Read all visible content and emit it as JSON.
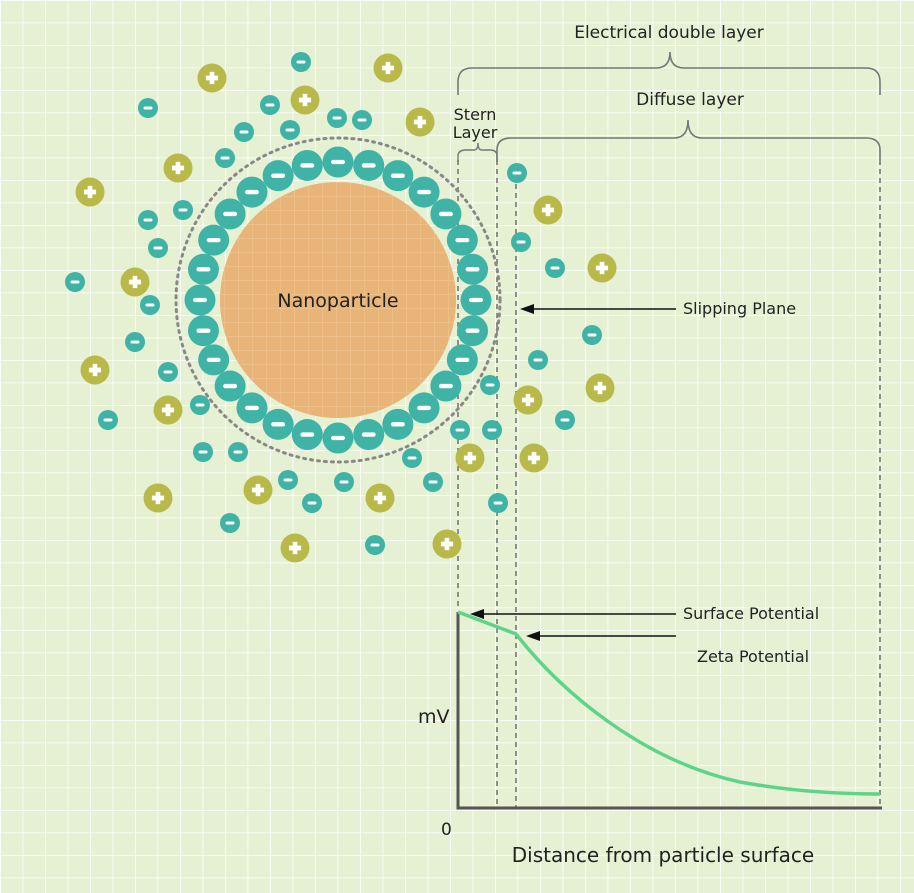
{
  "labels": {
    "electrical_double_layer": "Electrical double layer",
    "diffuse_layer": "Diffuse layer",
    "stern_line1": "Stern",
    "stern_line2": "Layer",
    "nanoparticle": "Nanoparticle",
    "slipping_plane": "Slipping Plane",
    "surface_potential": "Surface Potential",
    "zeta_potential": "Zeta Potential",
    "y_axis": "mV",
    "origin": "0",
    "x_axis": "Distance from particle surface"
  },
  "symbols": {
    "positive": "+",
    "negative": "−"
  },
  "colors": {
    "background": "#e6f0d3",
    "grid": "#ffffff",
    "particle": "#e8b478",
    "positive_ion": "#b9b94a",
    "negative_ion": "#3fb3a6",
    "curve": "#5ed48a",
    "axis": "#555555"
  }
}
